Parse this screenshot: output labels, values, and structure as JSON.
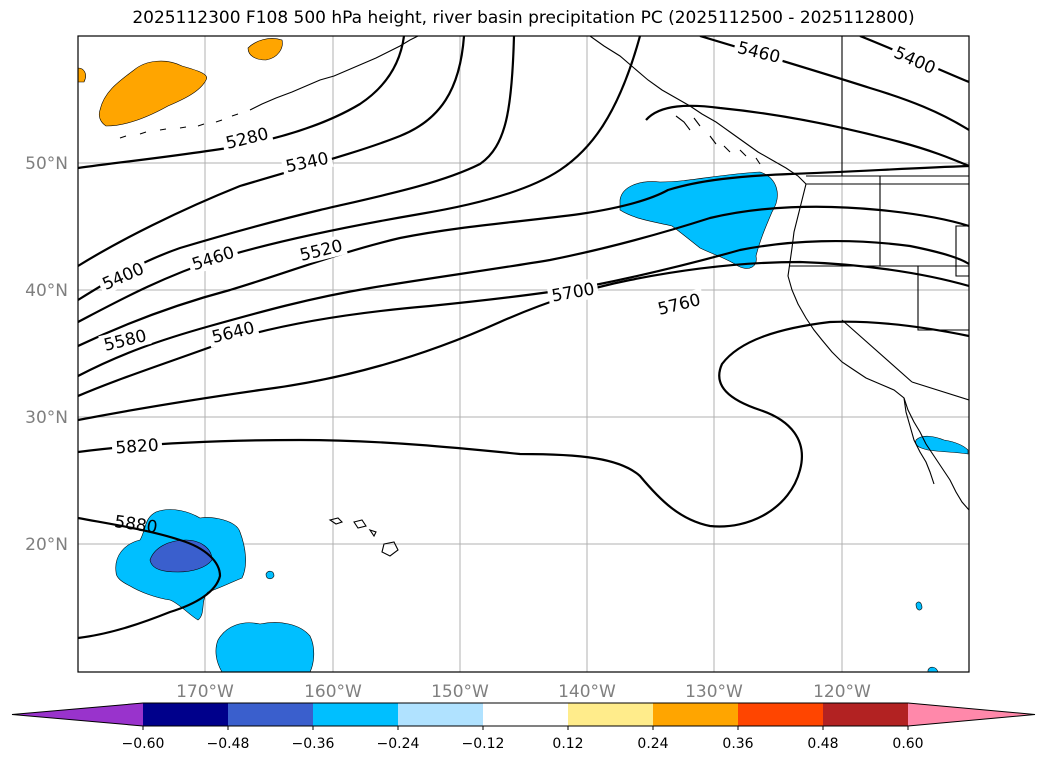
{
  "title": "2025112300 F108 500 hPa height, river basin precipitation PC (2025112500 - 2025112800)",
  "lat_labels": [
    "50°N",
    "40°N",
    "30°N",
    "20°N"
  ],
  "lon_labels": [
    "170°W",
    "160°W",
    "150°W",
    "140°W",
    "130°W",
    "120°W"
  ],
  "contour_labels": [
    "5280",
    "5340",
    "5400",
    "5460",
    "5520",
    "5580",
    "5640",
    "5700",
    "5760",
    "5820",
    "5880",
    "5460",
    "5400"
  ],
  "colorbar": {
    "ticks": [
      "−0.60",
      "−0.48",
      "−0.36",
      "−0.24",
      "−0.12",
      "0.12",
      "0.24",
      "0.36",
      "0.48",
      "0.60"
    ],
    "colors": [
      "#9933cc",
      "#00008b",
      "#3a5fcd",
      "#00bfff",
      "#b0e2ff",
      "#ffffff",
      "#ffec8b",
      "#ffa500",
      "#ff4500",
      "#b22222",
      "#ff88aa"
    ]
  },
  "colors": {
    "negative_light": "#00bfff",
    "negative_strong": "#3a5fcd",
    "positive": "#ffa500",
    "contour": "#000000",
    "grid": "#b0b0b0"
  }
}
